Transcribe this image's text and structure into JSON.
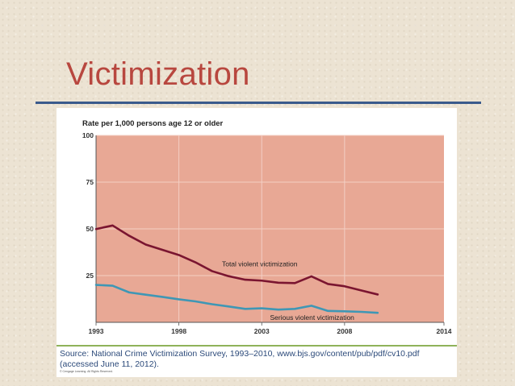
{
  "slide": {
    "title": "Victimization"
  },
  "source": {
    "text": "Source: National Crime Victimization Survey, 1993–2010, www.bjs.gov/content/pub/pdf/cv10.pdf (accessed June 11, 2012).",
    "copyright": "© Cengage Learning. All Rights Reserved."
  },
  "colors": {
    "background": "#ece3d3",
    "title": "#b8473f",
    "rule": "#3a5a8c",
    "plot_fill": "#e8a895",
    "grid": "#f3cfc4",
    "total_line": "#7a1530",
    "serious_line": "#3f97b5",
    "source_border": "#8fb25a",
    "source_text": "#2c4a7a"
  },
  "chart_data": {
    "type": "line",
    "title": "Rate per 1,000 persons age 12 or older",
    "xlabel": "",
    "ylabel": "",
    "xlim": [
      1993,
      2014
    ],
    "ylim": [
      0,
      100
    ],
    "x_ticks": [
      1993,
      1998,
      2003,
      2008,
      2014
    ],
    "y_ticks": [
      25,
      50,
      75,
      100
    ],
    "grid": true,
    "x": [
      1993,
      1994,
      1995,
      1996,
      1997,
      1998,
      1999,
      2000,
      2001,
      2002,
      2003,
      2004,
      2005,
      2006,
      2007,
      2008,
      2009,
      2010
    ],
    "series": [
      {
        "name": "Total violent victimization",
        "values": [
          49.9,
          51.8,
          46.3,
          41.6,
          38.8,
          36.0,
          32.1,
          27.4,
          24.7,
          22.8,
          22.3,
          21.2,
          21.0,
          24.6,
          20.5,
          19.3,
          17.1,
          14.9
        ]
      },
      {
        "name": "Serious violent victimization",
        "values": [
          20.0,
          19.6,
          16.0,
          14.8,
          13.6,
          12.3,
          11.2,
          9.7,
          8.5,
          7.2,
          7.5,
          6.8,
          7.2,
          8.9,
          6.1,
          5.9,
          5.6,
          5.1
        ]
      }
    ]
  }
}
